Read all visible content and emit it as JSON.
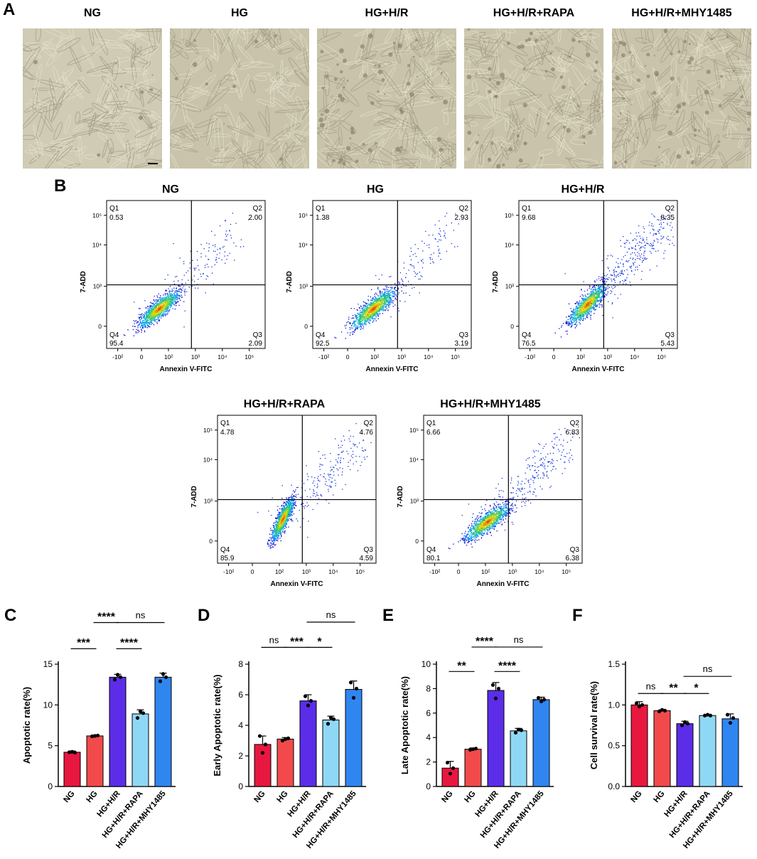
{
  "panel_labels": {
    "a": "A",
    "b": "B",
    "c": "C",
    "d": "D",
    "e": "E",
    "f": "F"
  },
  "micrographs": {
    "titles": [
      "NG",
      "HG",
      "HG+H/R",
      "HG+H/R+RAPA",
      "HG+H/R+MHY1485"
    ]
  },
  "flow": {
    "xlabel": "Annexin V-FITC",
    "ylabel": "7-ADD",
    "x_ticks": [
      "-10²",
      "0",
      "10²",
      "10³",
      "10⁴",
      "10⁵"
    ],
    "y_ticks": [
      "0",
      "10³",
      "10⁴",
      "10⁵"
    ],
    "quadrant_names": [
      "Q1",
      "Q2",
      "Q3",
      "Q4"
    ],
    "plots": [
      {
        "title": "NG",
        "q1": "0.53",
        "q2": "2.00",
        "q3": "2.09",
        "q4": "95.4"
      },
      {
        "title": "HG",
        "q1": "1.38",
        "q2": "2.93",
        "q3": "3.19",
        "q4": "92.5"
      },
      {
        "title": "HG+H/R",
        "q1": "9.68",
        "q2": "8.35",
        "q3": "5.43",
        "q4": "76.5"
      },
      {
        "title": "HG+H/R+RAPA",
        "q1": "4.78",
        "q2": "4.76",
        "q3": "4.59",
        "q4": "85.9"
      },
      {
        "title": "HG+H/R+MHY1485",
        "q1": "6.66",
        "q2": "6.83",
        "q3": "6.38",
        "q4": "80.1"
      }
    ]
  },
  "colors": {
    "NG": "#e8173f",
    "HG": "#f24a4a",
    "HG+H/R": "#5b2de8",
    "HG+H/R+RAPA": "#8fd8f5",
    "HG+H/R+MHY1485": "#2f86f0"
  },
  "chart_data": [
    {
      "type": "bar",
      "panel": "C",
      "categories": [
        "NG",
        "HG",
        "HG+H/R",
        "HG+H/R+RAPA",
        "HG+H/R+MHY1485"
      ],
      "values": [
        4.2,
        6.2,
        13.4,
        8.9,
        13.4
      ],
      "error": [
        0.15,
        0.1,
        0.35,
        0.5,
        0.5
      ],
      "points": [
        [
          4.2,
          4.25,
          4.15
        ],
        [
          6.15,
          6.2,
          6.25
        ],
        [
          13.1,
          13.7,
          13.4
        ],
        [
          8.4,
          9.2,
          9.0
        ],
        [
          12.9,
          13.8,
          13.4
        ]
      ],
      "ylabel": "Apoptotic rate(%)",
      "ylim": [
        0,
        15
      ],
      "yticks": [
        0,
        5,
        10,
        15
      ],
      "significance": [
        {
          "from": 0,
          "to": 1,
          "label": "***",
          "level": 16.9
        },
        {
          "from": 1,
          "to": 2,
          "label": "****",
          "level": 20.1
        },
        {
          "from": 2,
          "to": 3,
          "label": "****",
          "level": 16.9
        },
        {
          "from": 2,
          "to": 4,
          "label": "ns",
          "level": 20.1
        }
      ]
    },
    {
      "type": "bar",
      "panel": "D",
      "categories": [
        "NG",
        "HG",
        "HG+H/R",
        "HG+H/R+RAPA",
        "HG+H/R+MHY1485"
      ],
      "values": [
        2.75,
        3.1,
        5.6,
        4.35,
        6.35
      ],
      "error": [
        0.55,
        0.1,
        0.4,
        0.25,
        0.55
      ],
      "points": [
        [
          3.3,
          2.2,
          2.75
        ],
        [
          3.0,
          3.1,
          3.15
        ],
        [
          5.9,
          5.3,
          5.6
        ],
        [
          4.1,
          4.5,
          4.4
        ],
        [
          6.8,
          5.8,
          6.4
        ]
      ],
      "ylabel": "Early Apoptotic rate(%)",
      "ylim": [
        0,
        8
      ],
      "yticks": [
        0,
        2,
        4,
        6,
        8
      ],
      "significance": [
        {
          "from": 0,
          "to": 1,
          "label": "ns",
          "level": 9.1
        },
        {
          "from": 1,
          "to": 2,
          "label": "***",
          "level": 9.1
        },
        {
          "from": 2,
          "to": 3,
          "label": "*",
          "level": 9.1
        },
        {
          "from": 2,
          "to": 4,
          "label": "ns",
          "level": 10.75
        }
      ]
    },
    {
      "type": "bar",
      "panel": "E",
      "categories": [
        "NG",
        "HG",
        "HG+H/R",
        "HG+H/R+RAPA",
        "HG+H/R+MHY1485"
      ],
      "values": [
        1.5,
        3.05,
        7.85,
        4.55,
        7.1
      ],
      "error": [
        0.55,
        0.1,
        0.65,
        0.2,
        0.2
      ],
      "points": [
        [
          1.95,
          1.05,
          1.5
        ],
        [
          3.0,
          3.05,
          3.1
        ],
        [
          8.3,
          7.2,
          8.0
        ],
        [
          4.4,
          4.65,
          4.6
        ],
        [
          7.25,
          6.95,
          7.1
        ]
      ],
      "ylabel": "Late Apoptotic rate(%)",
      "ylim": [
        0,
        10
      ],
      "yticks": [
        0,
        2,
        4,
        6,
        8,
        10
      ],
      "significance": [
        {
          "from": 0,
          "to": 1,
          "label": "**",
          "level": 9.4
        },
        {
          "from": 1,
          "to": 2,
          "label": "****",
          "level": 11.4
        },
        {
          "from": 2,
          "to": 3,
          "label": "****",
          "level": 9.4
        },
        {
          "from": 2,
          "to": 4,
          "label": "ns",
          "level": 11.4
        }
      ]
    },
    {
      "type": "bar",
      "panel": "F",
      "categories": [
        "NG",
        "HG",
        "HG+H/R",
        "HG+H/R+RAPA",
        "HG+H/R+MHY1485"
      ],
      "values": [
        1.0,
        0.93,
        0.77,
        0.87,
        0.83
      ],
      "error": [
        0.04,
        0.01,
        0.03,
        0.01,
        0.06
      ],
      "points": [
        [
          1.02,
          0.98,
          1.0
        ],
        [
          0.92,
          0.94,
          0.93
        ],
        [
          0.75,
          0.79,
          0.77
        ],
        [
          0.87,
          0.88,
          0.87
        ],
        [
          0.88,
          0.78,
          0.84
        ]
      ],
      "ylabel": "Cell survival rate(%)",
      "ylim": [
        0,
        1.5
      ],
      "yticks": [
        "0.0",
        "0.5",
        "1.0",
        "1.5"
      ],
      "significance": [
        {
          "from": 0,
          "to": 1,
          "label": "ns",
          "level": 1.14
        },
        {
          "from": 1,
          "to": 2,
          "label": "**",
          "level": 1.14
        },
        {
          "from": 2,
          "to": 3,
          "label": "*",
          "level": 1.14
        },
        {
          "from": 2,
          "to": 4,
          "label": "ns",
          "level": 1.35
        }
      ]
    }
  ]
}
